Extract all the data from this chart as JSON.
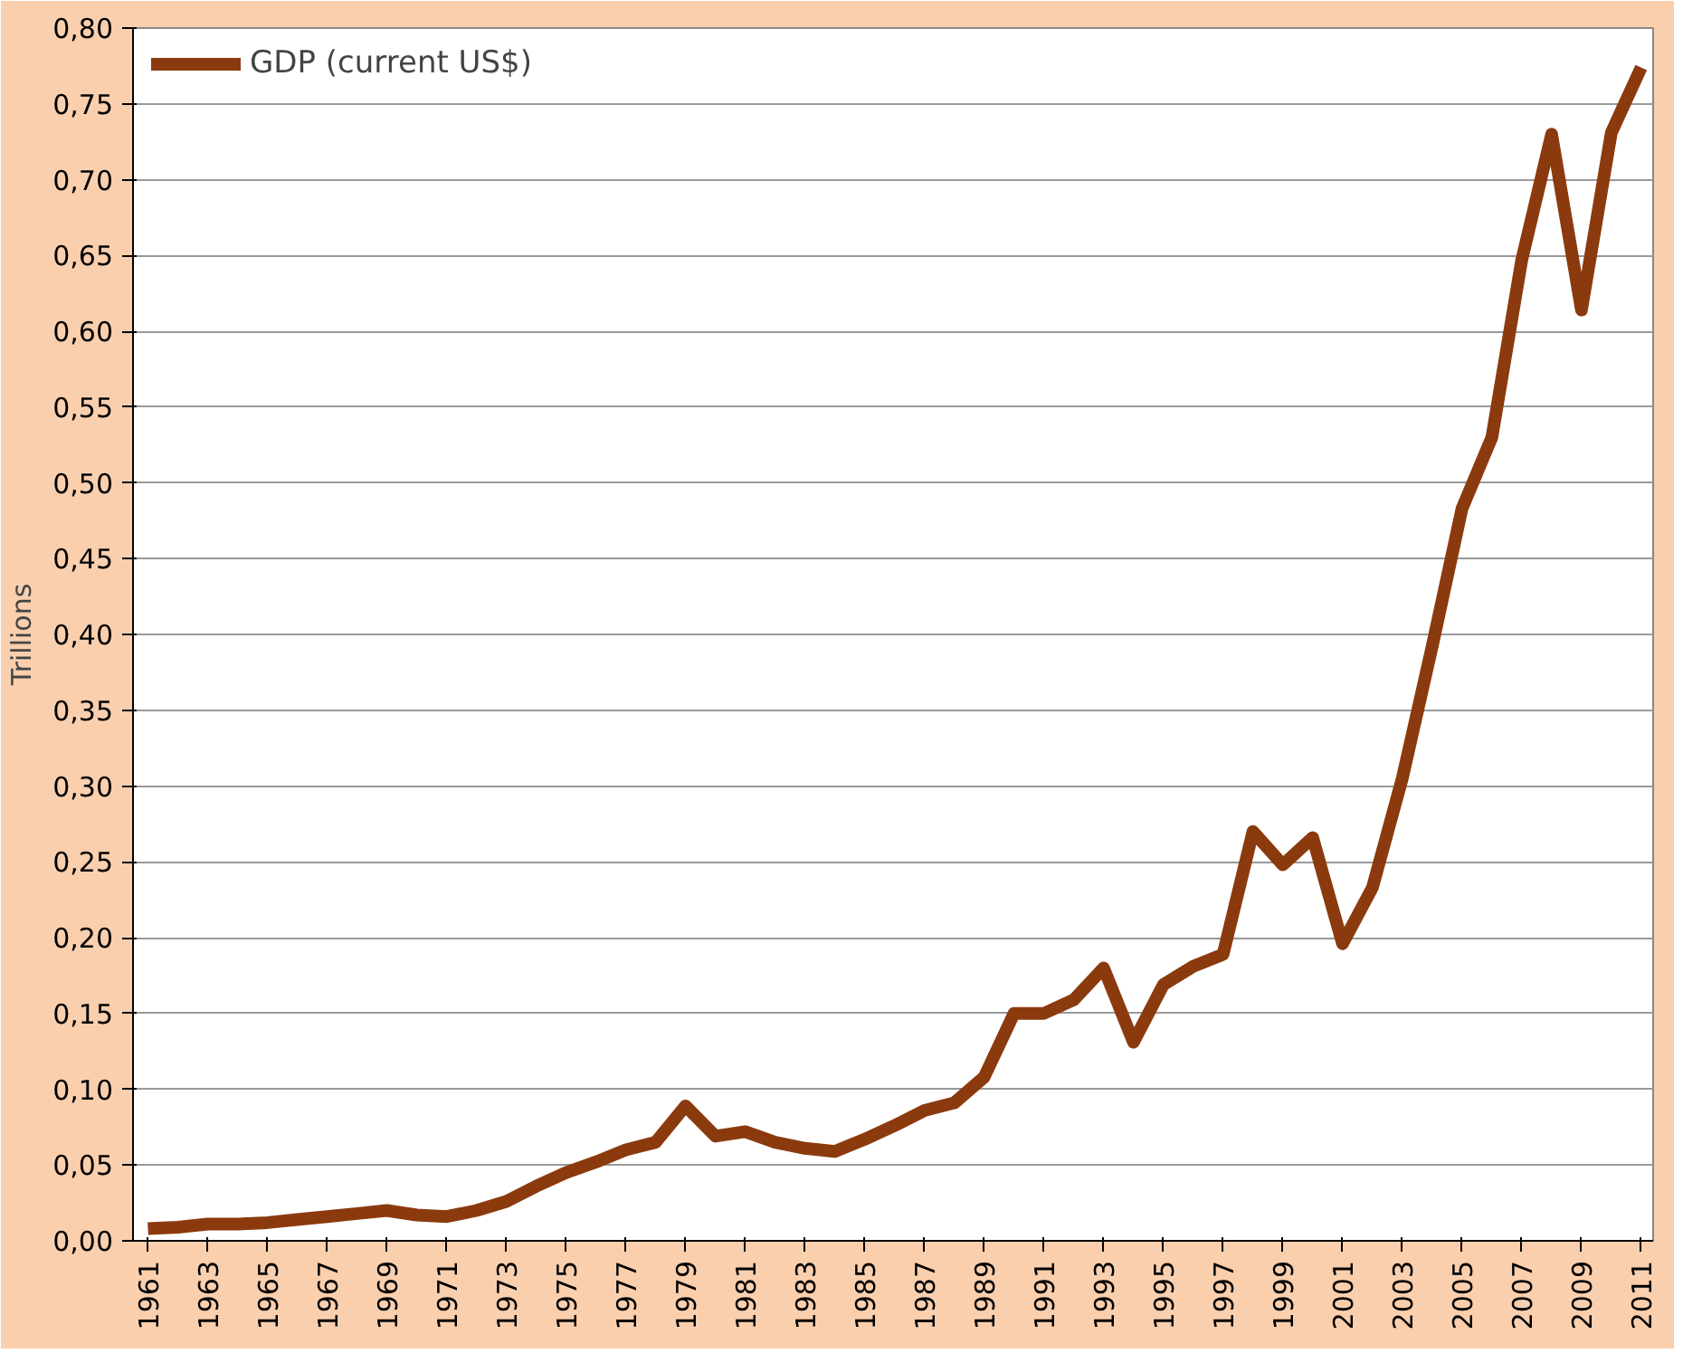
{
  "chart_data": {
    "type": "line",
    "ylabel": "Trillions",
    "x": [
      1961,
      1962,
      1963,
      1964,
      1965,
      1966,
      1967,
      1968,
      1969,
      1970,
      1971,
      1972,
      1973,
      1974,
      1975,
      1976,
      1977,
      1978,
      1979,
      1980,
      1981,
      1982,
      1983,
      1984,
      1985,
      1986,
      1987,
      1988,
      1989,
      1990,
      1991,
      1992,
      1993,
      1994,
      1995,
      1996,
      1997,
      1998,
      1999,
      2000,
      2001,
      2002,
      2003,
      2004,
      2005,
      2006,
      2007,
      2008,
      2009,
      2010,
      2011
    ],
    "series": [
      {
        "name": "GDP (current US$)",
        "color": "#8b3a0e",
        "values": [
          0.008,
          0.009,
          0.011,
          0.011,
          0.012,
          0.014,
          0.016,
          0.018,
          0.02,
          0.017,
          0.016,
          0.02,
          0.026,
          0.036,
          0.045,
          0.052,
          0.06,
          0.065,
          0.089,
          0.069,
          0.072,
          0.065,
          0.061,
          0.059,
          0.067,
          0.076,
          0.086,
          0.091,
          0.108,
          0.15,
          0.15,
          0.159,
          0.18,
          0.131,
          0.169,
          0.181,
          0.189,
          0.27,
          0.248,
          0.266,
          0.196,
          0.233,
          0.305,
          0.392,
          0.483,
          0.53,
          0.647,
          0.73,
          0.614,
          0.731,
          0.774
        ]
      }
    ],
    "xlim": [
      1960.5,
      2011.4
    ],
    "xticks": [
      1961,
      1963,
      1965,
      1967,
      1969,
      1971,
      1973,
      1975,
      1977,
      1979,
      1981,
      1983,
      1985,
      1987,
      1989,
      1991,
      1993,
      1995,
      1997,
      1999,
      2001,
      2003,
      2005,
      2007,
      2009,
      2011
    ],
    "ylim": [
      0,
      0.8
    ],
    "yticks": [
      {
        "value": 0,
        "label": "0,00"
      },
      {
        "value": 0.05,
        "label": "0,05"
      },
      {
        "value": 0.1,
        "label": "0,10"
      },
      {
        "value": 0.15,
        "label": "0,15"
      },
      {
        "value": 0.2,
        "label": "0,20"
      },
      {
        "value": 0.25,
        "label": "0,25"
      },
      {
        "value": 0.3,
        "label": "0,30"
      },
      {
        "value": 0.35,
        "label": "0,35"
      },
      {
        "value": 0.4,
        "label": "0,40"
      },
      {
        "value": 0.45,
        "label": "0,45"
      },
      {
        "value": 0.5,
        "label": "0,50"
      },
      {
        "value": 0.55,
        "label": "0,55"
      },
      {
        "value": 0.6,
        "label": "0,60"
      },
      {
        "value": 0.65,
        "label": "0,65"
      },
      {
        "value": 0.7,
        "label": "0,70"
      },
      {
        "value": 0.75,
        "label": "0,75"
      },
      {
        "value": 0.8,
        "label": "0,80"
      }
    ],
    "grid": "y",
    "legend": "top left",
    "marker": "none",
    "line_style": "solid"
  }
}
